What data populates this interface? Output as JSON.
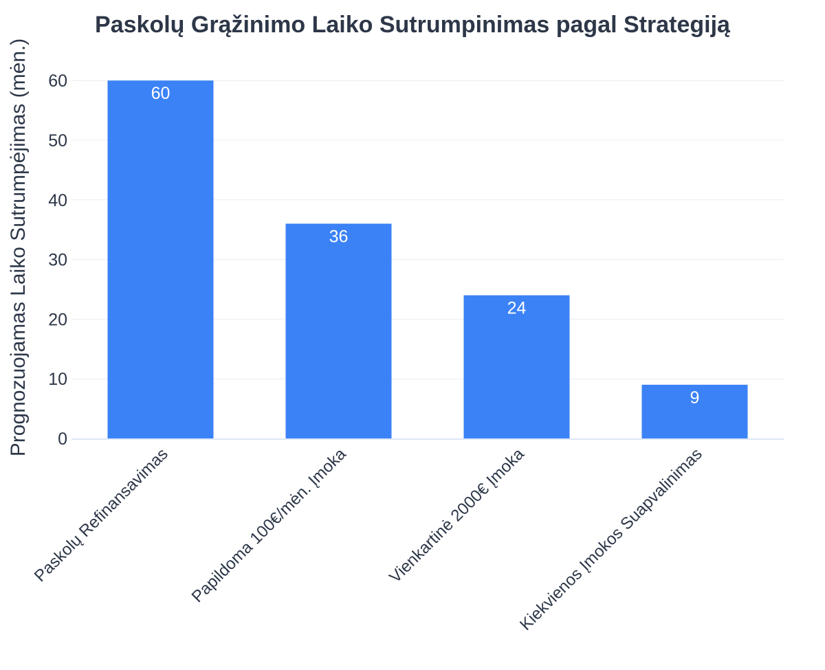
{
  "chart_data": {
    "type": "bar",
    "title": "Paskolų Grąžinimo Laiko Sutrumpinimas pagal Strategiją",
    "xlabel": "",
    "ylabel": "Prognozuojamas Laiko Sutrumpėjimas (mėn.)",
    "categories": [
      "Paskolų Refinansavimas",
      "Papildoma 100€/mėn. Įmoka",
      "Vienkartinė 2000€ Įmoka",
      "Kiekvienos Įmokos Suapvalinimas"
    ],
    "values": [
      60,
      36,
      24,
      9
    ],
    "data_labels": [
      "60",
      "36",
      "24",
      "9"
    ],
    "ylim": [
      0,
      62
    ],
    "yticks": [
      "0",
      "10",
      "20",
      "30",
      "40",
      "50",
      "60"
    ],
    "grid": true,
    "legend": "none",
    "bar_color": "#3b82f6"
  }
}
